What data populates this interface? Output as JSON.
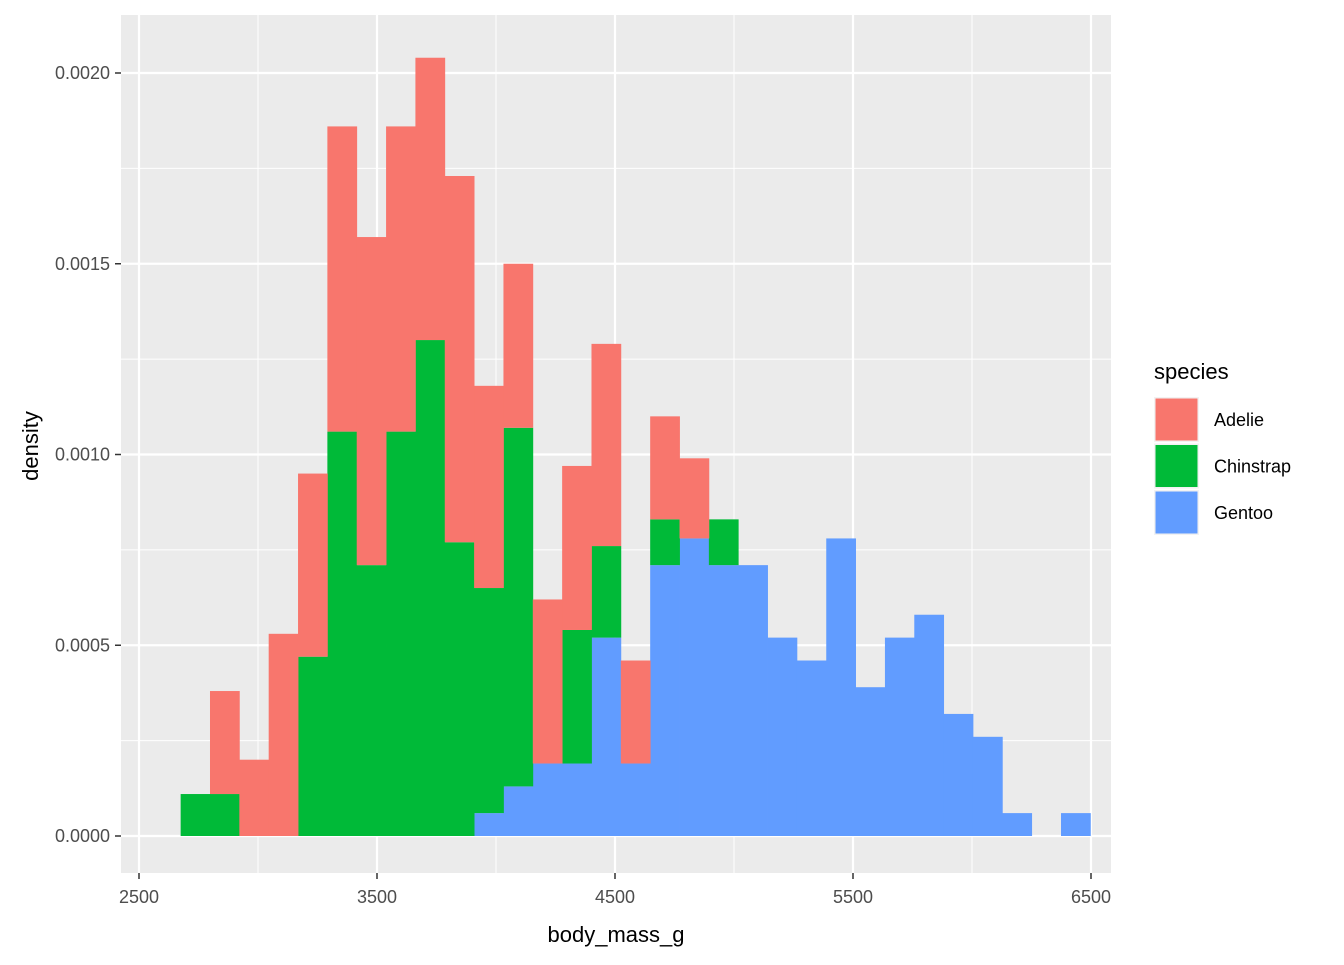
{
  "chart_data": {
    "type": "histogram",
    "stacked": true,
    "xlabel": "body_mass_g",
    "ylabel": "density",
    "xlim": [
      2500,
      6500
    ],
    "ylim": [
      0,
      0.0021
    ],
    "x_ticks": [
      2500,
      3500,
      4500,
      5500,
      6500
    ],
    "y_ticks": [
      0,
      0.0005,
      0.001,
      0.0015,
      0.002
    ],
    "y_tick_labels": [
      "0.0000",
      "0.0005",
      "0.0010",
      "0.0015",
      "0.0020"
    ],
    "bin_start": 2675,
    "bin_width": 123.3,
    "grid": true,
    "legend": {
      "title": "species",
      "position": "right",
      "entries": [
        "Adelie",
        "Chinstrap",
        "Gentoo"
      ]
    },
    "colors": {
      "Adelie": "#F8766D",
      "Chinstrap": "#00BA38",
      "Gentoo": "#619CFF",
      "panel": "#EBEBEB",
      "grid": "#FFFFFF"
    },
    "series": [
      {
        "name": "Gentoo",
        "values": [
          0,
          0,
          0,
          0,
          0,
          0,
          0,
          0,
          0,
          0,
          6e-05,
          0.00013,
          0.00019,
          0.00019,
          0.00052,
          0.00019,
          0.00071,
          0.00078,
          0.00071,
          0.00071,
          0.00052,
          0.00046,
          0.00078,
          0.00039,
          0.00052,
          0.00058,
          0.00032,
          0.00026,
          6e-05,
          0,
          6e-05
        ]
      },
      {
        "name": "Chinstrap",
        "values": [
          0.00011,
          0.00011,
          0,
          0,
          0.00047,
          0.00106,
          0.00071,
          0.00106,
          0.0013,
          0.00077,
          0.00059,
          0.00094,
          0,
          0.00035,
          0.00024,
          0,
          0.00012,
          0,
          0.00012,
          0,
          0,
          0,
          0,
          0,
          0,
          0,
          0,
          0,
          0,
          0,
          0
        ]
      },
      {
        "name": "Adelie",
        "values": [
          0,
          0.00027,
          0.0002,
          0.00053,
          0.00048,
          0.0008,
          0.00086,
          0.0008,
          0.00074,
          0.00096,
          0.00053,
          0.00043,
          0.00043,
          0.00043,
          0.00053,
          0.00027,
          0.00027,
          0.00021,
          0,
          0,
          0,
          0,
          0,
          0,
          0,
          0,
          0,
          0,
          0,
          0,
          0
        ]
      }
    ]
  }
}
